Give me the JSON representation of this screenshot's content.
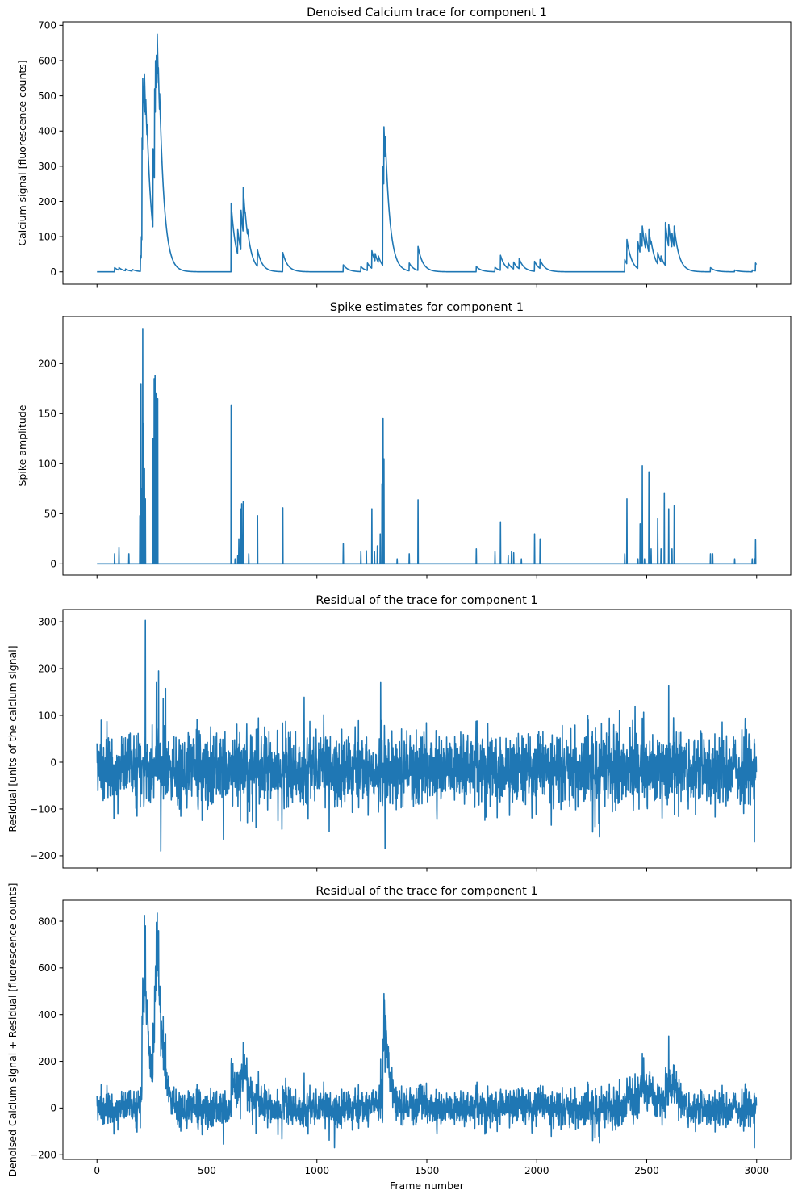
{
  "chart_data": [
    {
      "type": "line",
      "title": "Denoised Calcium trace for component 1",
      "xlabel": "",
      "ylabel": "Calcium signal [fluorescence counts]",
      "xlim": [
        -155,
        3155
      ],
      "ylim": [
        -35,
        710
      ],
      "xticks": [
        0,
        500,
        1000,
        1500,
        2000,
        2500,
        3000
      ],
      "xtick_labels_visible": false,
      "yticks": [
        0,
        100,
        200,
        300,
        400,
        500,
        600,
        700
      ],
      "grid": false,
      "series": [
        {
          "kind": "calcium",
          "baseline": 0,
          "decay_tau": 22,
          "events": [
            [
              80,
              12
            ],
            [
              100,
              12
            ],
            [
              130,
              8
            ],
            [
              160,
              7
            ],
            [
              198,
              45
            ],
            [
              202,
              100
            ],
            [
              205,
              380
            ],
            [
              208,
              550
            ],
            [
              212,
              520
            ],
            [
              216,
              560
            ],
            [
              222,
              420
            ],
            [
              228,
              300
            ],
            [
              255,
              350
            ],
            [
              262,
              520
            ],
            [
              266,
              600
            ],
            [
              270,
              615
            ],
            [
              274,
              675
            ],
            [
              279,
              580
            ],
            [
              285,
              430
            ],
            [
              610,
              195
            ],
            [
              640,
              120
            ],
            [
              655,
              175
            ],
            [
              665,
              240
            ],
            [
              674,
              170
            ],
            [
              685,
              120
            ],
            [
              730,
              62
            ],
            [
              845,
              55
            ],
            [
              1120,
              20
            ],
            [
              1200,
              15
            ],
            [
              1230,
              25
            ],
            [
              1250,
              60
            ],
            [
              1265,
              52
            ],
            [
              1280,
              45
            ],
            [
              1300,
              300
            ],
            [
              1305,
              412
            ],
            [
              1311,
              385
            ],
            [
              1420,
              25
            ],
            [
              1460,
              72
            ],
            [
              1725,
              15
            ],
            [
              1810,
              13
            ],
            [
              1835,
              47
            ],
            [
              1870,
              25
            ],
            [
              1895,
              28
            ],
            [
              1920,
              38
            ],
            [
              1990,
              30
            ],
            [
              2015,
              35
            ],
            [
              2400,
              35
            ],
            [
              2410,
              92
            ],
            [
              2460,
              85
            ],
            [
              2470,
              110
            ],
            [
              2480,
              130
            ],
            [
              2495,
              110
            ],
            [
              2510,
              120
            ],
            [
              2520,
              75
            ],
            [
              2550,
              55
            ],
            [
              2565,
              45
            ],
            [
              2585,
              140
            ],
            [
              2600,
              135
            ],
            [
              2615,
              110
            ],
            [
              2625,
              130
            ],
            [
              2790,
              12
            ],
            [
              2900,
              5
            ],
            [
              2980,
              5
            ],
            [
              2995,
              25
            ]
          ]
        }
      ]
    },
    {
      "type": "line",
      "title": "Spike estimates for component 1",
      "xlabel": "",
      "ylabel": "Spike amplitude",
      "xlim": [
        -155,
        3155
      ],
      "ylim": [
        -11,
        247
      ],
      "xticks": [
        0,
        500,
        1000,
        1500,
        2000,
        2500,
        3000
      ],
      "xtick_labels_visible": false,
      "yticks": [
        0,
        50,
        100,
        150,
        200
      ],
      "grid": false,
      "series": [
        {
          "kind": "spikes",
          "baseline": 0,
          "spikes": [
            [
              80,
              10
            ],
            [
              100,
              16
            ],
            [
              145,
              10
            ],
            [
              195,
              48
            ],
            [
              200,
              180
            ],
            [
              204,
              75
            ],
            [
              208,
              235
            ],
            [
              212,
              140
            ],
            [
              216,
              95
            ],
            [
              220,
              65
            ],
            [
              255,
              125
            ],
            [
              260,
              185
            ],
            [
              264,
              188
            ],
            [
              268,
              170
            ],
            [
              272,
              160
            ],
            [
              276,
              165
            ],
            [
              610,
              158
            ],
            [
              628,
              5
            ],
            [
              640,
              8
            ],
            [
              645,
              25
            ],
            [
              652,
              55
            ],
            [
              658,
              60
            ],
            [
              665,
              62
            ],
            [
              690,
              10
            ],
            [
              730,
              48
            ],
            [
              845,
              56
            ],
            [
              1120,
              20
            ],
            [
              1200,
              12
            ],
            [
              1225,
              13
            ],
            [
              1250,
              55
            ],
            [
              1262,
              12
            ],
            [
              1275,
              18
            ],
            [
              1288,
              30
            ],
            [
              1296,
              80
            ],
            [
              1301,
              145
            ],
            [
              1305,
              105
            ],
            [
              1365,
              5
            ],
            [
              1420,
              10
            ],
            [
              1460,
              64
            ],
            [
              1725,
              15
            ],
            [
              1810,
              12
            ],
            [
              1835,
              42
            ],
            [
              1870,
              8
            ],
            [
              1885,
              12
            ],
            [
              1895,
              11
            ],
            [
              1930,
              5
            ],
            [
              1990,
              30
            ],
            [
              2015,
              25
            ],
            [
              2400,
              10
            ],
            [
              2410,
              65
            ],
            [
              2460,
              5
            ],
            [
              2470,
              40
            ],
            [
              2480,
              98
            ],
            [
              2490,
              5
            ],
            [
              2510,
              92
            ],
            [
              2520,
              15
            ],
            [
              2550,
              45
            ],
            [
              2565,
              15
            ],
            [
              2580,
              71
            ],
            [
              2600,
              55
            ],
            [
              2615,
              15
            ],
            [
              2625,
              58
            ],
            [
              2790,
              10
            ],
            [
              2800,
              10
            ],
            [
              2900,
              5
            ],
            [
              2980,
              5
            ],
            [
              2990,
              5
            ],
            [
              2995,
              24
            ]
          ]
        }
      ]
    },
    {
      "type": "line",
      "title": "Residual of the trace for component 1",
      "xlabel": "",
      "ylabel": "Residual [units of the calcium signal]",
      "xlim": [
        -155,
        3155
      ],
      "ylim": [
        -226,
        326
      ],
      "xticks": [
        0,
        500,
        1000,
        1500,
        2000,
        2500,
        3000
      ],
      "xtick_labels_visible": false,
      "yticks": [
        -200,
        -100,
        0,
        100,
        200,
        300
      ],
      "grid": false,
      "series": [
        {
          "kind": "noise",
          "mean": -15,
          "noise_sd": 38,
          "seed": 7,
          "extremes": [
            [
              220,
              303
            ],
            [
              280,
              195
            ],
            [
              270,
              170
            ],
            [
              290,
              -190
            ],
            [
              1310,
              -185
            ],
            [
              1290,
              170
            ],
            [
              2600,
              163
            ],
            [
              2990,
              -170
            ]
          ]
        }
      ]
    },
    {
      "type": "line",
      "title": "Residual of the trace for component 1",
      "xlabel": "Frame number",
      "ylabel": "Denoised Calcium signal + Residual [fluorescence counts]",
      "xlim": [
        -155,
        3155
      ],
      "ylim": [
        -220,
        890
      ],
      "xticks": [
        0,
        500,
        1000,
        1500,
        2000,
        2500,
        3000
      ],
      "xtick_labels_visible": true,
      "yticks": [
        -200,
        0,
        200,
        400,
        600,
        800
      ],
      "grid": false,
      "series": [
        {
          "kind": "sum",
          "of": [
            0,
            2
          ],
          "extremes": [
            [
              216,
              825
            ],
            [
              274,
              835
            ],
            [
              1305,
              490
            ],
            [
              1080,
              -170
            ],
            [
              2990,
              -170
            ]
          ]
        }
      ]
    }
  ],
  "style": {
    "line_color": "#1f77b4",
    "axes_color": "#000000",
    "background": "#ffffff"
  }
}
